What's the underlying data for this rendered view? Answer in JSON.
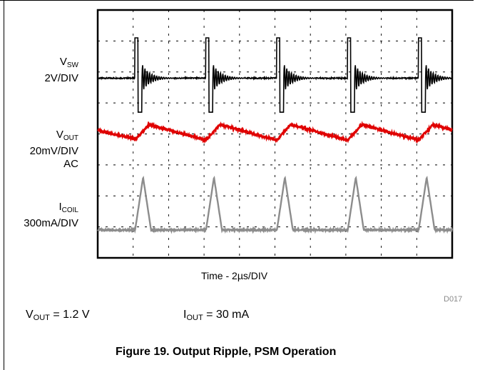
{
  "channels": [
    {
      "main": "V",
      "sub": "SW",
      "lines": [
        "2V/DIV"
      ]
    },
    {
      "main": "V",
      "sub": "OUT",
      "lines": [
        "20mV/DIV",
        "AC"
      ]
    },
    {
      "main": "I",
      "sub": "COIL",
      "lines": [
        "300mA/DIV"
      ]
    }
  ],
  "x_axis_label": "Time - 2µs/DIV",
  "figure_code": "D017",
  "conditions": {
    "vout": {
      "main": "V",
      "sub": "OUT",
      "rest": " = 1.2 V"
    },
    "iout": {
      "main": "I",
      "sub": "OUT",
      "rest": " = 30 mA"
    }
  },
  "caption": "Figure 19. Output Ripple, PSM Operation",
  "chart_data": {
    "type": "line",
    "title": "",
    "xlabel": "Time - 2µs/DIV",
    "divisions": {
      "x": 10,
      "y": 8
    },
    "grid": true,
    "x_units": "div",
    "pulse_times": [
      1.05,
      3.05,
      5.05,
      7.05,
      9.05
    ],
    "series": [
      {
        "name": "VSW",
        "color": "#000000",
        "baseline_div": 5.8,
        "pulse_high_div": 7.1,
        "pulse_low_div": 4.7,
        "pulse_width_div": 0.2,
        "ring_amplitude_div": 0.45,
        "ring_duration_div": 0.9
      },
      {
        "name": "VOUT",
        "color": "#e00000",
        "baseline_div": 3.95,
        "ramp_up_div": 0.35,
        "ramp_up_width_div": 0.4,
        "decay_div": 0.5
      },
      {
        "name": "ICOIL",
        "color": "#8c8c8c",
        "baseline_div": 0.9,
        "peak_div": 2.6,
        "peak_width_div": 0.45
      }
    ],
    "colors": {
      "vsw": "#000000",
      "vout": "#e00000",
      "icoil": "#8c8c8c",
      "grid": "#000000"
    }
  }
}
